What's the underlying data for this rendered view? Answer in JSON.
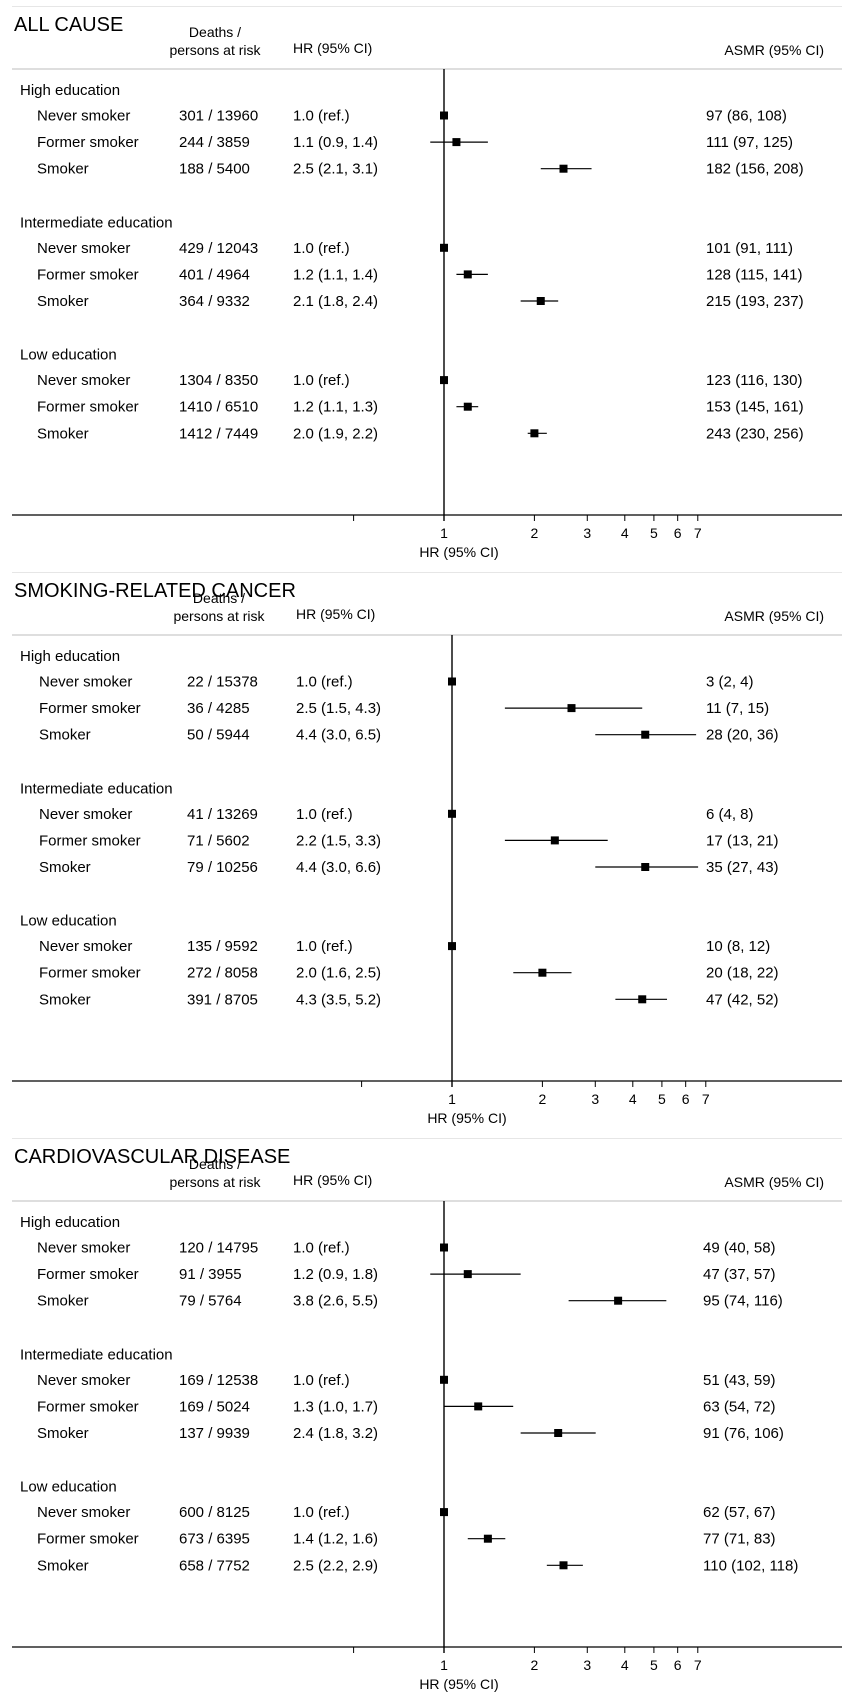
{
  "chart_data": [
    {
      "type": "forest",
      "title": "ALL CAUSE",
      "column_headers": {
        "count_line1": "Deaths /",
        "count_line2": "persons at risk",
        "hr": "HR (95% CI)",
        "asmr": "ASMR (95% CI)"
      },
      "xlabel": "HR (95% CI)",
      "x_scale": "log",
      "reference_line": 1,
      "xticks": [
        "1",
        "2",
        "3",
        "4",
        "5",
        "6",
        "7"
      ],
      "groups": [
        {
          "label": "High education",
          "rows": [
            {
              "label": "Never smoker",
              "count": "301 / 13960",
              "hr_text": "1.0 (ref.)",
              "asmr": "97 (86, 108)",
              "hr": 1.0,
              "lo": null,
              "hi": null
            },
            {
              "label": "Former smoker",
              "count": "244 / 3859",
              "hr_text": "1.1 (0.9, 1.4)",
              "asmr": "111 (97, 125)",
              "hr": 1.1,
              "lo": 0.9,
              "hi": 1.4
            },
            {
              "label": "Smoker",
              "count": "188 / 5400",
              "hr_text": "2.5 (2.1, 3.1)",
              "asmr": "182 (156, 208)",
              "hr": 2.5,
              "lo": 2.1,
              "hi": 3.1
            }
          ]
        },
        {
          "label": "Intermediate education",
          "rows": [
            {
              "label": "Never smoker",
              "count": "429 / 12043",
              "hr_text": "1.0 (ref.)",
              "asmr": "101 (91, 111)",
              "hr": 1.0,
              "lo": null,
              "hi": null
            },
            {
              "label": "Former smoker",
              "count": "401 / 4964",
              "hr_text": "1.2 (1.1, 1.4)",
              "asmr": "128 (115, 141)",
              "hr": 1.2,
              "lo": 1.1,
              "hi": 1.4
            },
            {
              "label": "Smoker",
              "count": "364 / 9332",
              "hr_text": "2.1 (1.8, 2.4)",
              "asmr": "215 (193, 237)",
              "hr": 2.1,
              "lo": 1.8,
              "hi": 2.4
            }
          ]
        },
        {
          "label": "Low education",
          "rows": [
            {
              "label": "Never smoker",
              "count": "1304 / 8350",
              "hr_text": "1.0 (ref.)",
              "asmr": "123 (116, 130)",
              "hr": 1.0,
              "lo": null,
              "hi": null
            },
            {
              "label": "Former smoker",
              "count": "1410 / 6510",
              "hr_text": "1.2 (1.1, 1.3)",
              "asmr": "153 (145, 161)",
              "hr": 1.2,
              "lo": 1.1,
              "hi": 1.3
            },
            {
              "label": "Smoker",
              "count": "1412 / 7449",
              "hr_text": "2.0 (1.9, 2.2)",
              "asmr": "243 (230, 256)",
              "hr": 2.0,
              "lo": 1.9,
              "hi": 2.2
            }
          ]
        }
      ]
    },
    {
      "type": "forest",
      "title": "SMOKING-RELATED CANCER",
      "column_headers": {
        "count_line1": "Deaths /",
        "count_line2": "persons at risk",
        "hr": "HR (95% CI)",
        "asmr": "ASMR (95% CI)"
      },
      "xlabel": "HR (95% CI)",
      "x_scale": "log",
      "reference_line": 1,
      "xticks": [
        "1",
        "2",
        "3",
        "4",
        "5",
        "6",
        "7"
      ],
      "groups": [
        {
          "label": "High education",
          "rows": [
            {
              "label": "Never smoker",
              "count": "22 / 15378",
              "hr_text": "1.0 (ref.)",
              "asmr": "3 (2, 4)",
              "hr": 1.0,
              "lo": null,
              "hi": null
            },
            {
              "label": "Former smoker",
              "count": "36 / 4285",
              "hr_text": "2.5 (1.5, 4.3)",
              "asmr": "11 (7, 15)",
              "hr": 2.5,
              "lo": 1.5,
              "hi": 4.3
            },
            {
              "label": "Smoker",
              "count": "50 / 5944",
              "hr_text": "4.4 (3.0, 6.5)",
              "asmr": "28 (20, 36)",
              "hr": 4.4,
              "lo": 3.0,
              "hi": 6.5
            }
          ]
        },
        {
          "label": "Intermediate education",
          "rows": [
            {
              "label": "Never smoker",
              "count": "41 / 13269",
              "hr_text": "1.0 (ref.)",
              "asmr": "6 (4, 8)",
              "hr": 1.0,
              "lo": null,
              "hi": null
            },
            {
              "label": "Former smoker",
              "count": "71 / 5602",
              "hr_text": "2.2 (1.5, 3.3)",
              "asmr": "17 (13, 21)",
              "hr": 2.2,
              "lo": 1.5,
              "hi": 3.3
            },
            {
              "label": "Smoker",
              "count": "79 / 10256",
              "hr_text": "4.4 (3.0, 6.6)",
              "asmr": "35 (27, 43)",
              "hr": 4.4,
              "lo": 3.0,
              "hi": 6.6
            }
          ]
        },
        {
          "label": "Low education",
          "rows": [
            {
              "label": "Never smoker",
              "count": "135 / 9592",
              "hr_text": "1.0 (ref.)",
              "asmr": "10 (8, 12)",
              "hr": 1.0,
              "lo": null,
              "hi": null
            },
            {
              "label": "Former smoker",
              "count": "272 / 8058",
              "hr_text": "2.0 (1.6, 2.5)",
              "asmr": "20 (18, 22)",
              "hr": 2.0,
              "lo": 1.6,
              "hi": 2.5
            },
            {
              "label": "Smoker",
              "count": "391 / 8705",
              "hr_text": "4.3 (3.5, 5.2)",
              "asmr": "47 (42, 52)",
              "hr": 4.3,
              "lo": 3.5,
              "hi": 5.2
            }
          ]
        }
      ]
    },
    {
      "type": "forest",
      "title": "CARDIOVASCULAR DISEASE",
      "column_headers": {
        "count_line1": "Deaths /",
        "count_line2": "persons at risk",
        "hr": "HR (95% CI)",
        "asmr": "ASMR (95% CI)"
      },
      "xlabel": "HR (95% CI)",
      "x_scale": "log",
      "reference_line": 1,
      "xticks": [
        "1",
        "2",
        "3",
        "4",
        "5",
        "6",
        "7"
      ],
      "groups": [
        {
          "label": "High education",
          "rows": [
            {
              "label": "Never smoker",
              "count": "120 / 14795",
              "hr_text": "1.0 (ref.)",
              "asmr": "49 (40, 58)",
              "hr": 1.0,
              "lo": null,
              "hi": null
            },
            {
              "label": "Former smoker",
              "count": "91 / 3955",
              "hr_text": "1.2 (0.9, 1.8)",
              "asmr": "47 (37, 57)",
              "hr": 1.2,
              "lo": 0.9,
              "hi": 1.8
            },
            {
              "label": "Smoker",
              "count": "79 / 5764",
              "hr_text": "3.8 (2.6, 5.5)",
              "asmr": "95 (74, 116)",
              "hr": 3.8,
              "lo": 2.6,
              "hi": 5.5
            }
          ]
        },
        {
          "label": "Intermediate education",
          "rows": [
            {
              "label": "Never smoker",
              "count": "169 / 12538",
              "hr_text": "1.0 (ref.)",
              "asmr": "51 (43, 59)",
              "hr": 1.0,
              "lo": null,
              "hi": null
            },
            {
              "label": "Former smoker",
              "count": "169 / 5024",
              "hr_text": "1.3 (1.0, 1.7)",
              "asmr": "63 (54, 72)",
              "hr": 1.3,
              "lo": 1.0,
              "hi": 1.7
            },
            {
              "label": "Smoker",
              "count": "137 / 9939",
              "hr_text": "2.4 (1.8, 3.2)",
              "asmr": "91 (76, 106)",
              "hr": 2.4,
              "lo": 1.8,
              "hi": 3.2
            }
          ]
        },
        {
          "label": "Low education",
          "rows": [
            {
              "label": "Never smoker",
              "count": "600 / 8125",
              "hr_text": "1.0 (ref.)",
              "asmr": "62 (57, 67)",
              "hr": 1.0,
              "lo": null,
              "hi": null
            },
            {
              "label": "Former smoker",
              "count": "673 / 6395",
              "hr_text": "1.4 (1.2, 1.6)",
              "asmr": "77 (71, 83)",
              "hr": 1.4,
              "lo": 1.2,
              "hi": 1.6
            },
            {
              "label": "Smoker",
              "count": "658 / 7752",
              "hr_text": "2.5 (2.2, 2.9)",
              "asmr": "110 (102, 118)",
              "hr": 2.5,
              "lo": 2.2,
              "hi": 2.9
            }
          ]
        }
      ]
    }
  ]
}
